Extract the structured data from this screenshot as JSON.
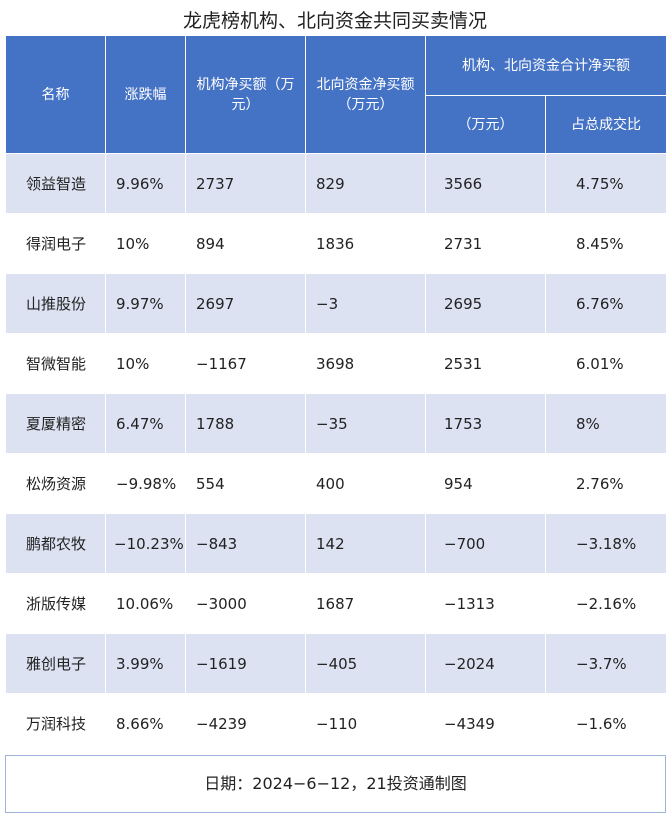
{
  "title": "龙虎榜机构、北向资金共同买卖情况",
  "headers": {
    "name": "名称",
    "change": "涨跌幅",
    "inst_net": "机构净买额（万元）",
    "north_net": "北向资金净买额（万元）",
    "combined_group": "机构、北向资金合计净买额",
    "combined_amount": "（万元）",
    "combined_share": "占总成交比"
  },
  "rows": [
    {
      "name": "领益智造",
      "change": "9.96%",
      "inst_net": "2737",
      "north_net": "829",
      "combined": "3566",
      "share": "4.75%"
    },
    {
      "name": "得润电子",
      "change": "10%",
      "inst_net": "894",
      "north_net": "1836",
      "combined": "2731",
      "share": "8.45%"
    },
    {
      "name": "山推股份",
      "change": "9.97%",
      "inst_net": "2697",
      "north_net": "−3",
      "combined": "2695",
      "share": "6.76%"
    },
    {
      "name": "智微智能",
      "change": "10%",
      "inst_net": "−1167",
      "north_net": "3698",
      "combined": "2531",
      "share": "6.01%"
    },
    {
      "name": "夏厦精密",
      "change": "6.47%",
      "inst_net": "1788",
      "north_net": "−35",
      "combined": "1753",
      "share": "8%"
    },
    {
      "name": "松炀资源",
      "change": "−9.98%",
      "inst_net": "554",
      "north_net": "400",
      "combined": "954",
      "share": "2.76%"
    },
    {
      "name": "鹏都农牧",
      "change": "−10.23%",
      "inst_net": "−843",
      "north_net": "142",
      "combined": "−700",
      "share": "−3.18%"
    },
    {
      "name": "浙版传媒",
      "change": "10.06%",
      "inst_net": "−3000",
      "north_net": "1687",
      "combined": "−1313",
      "share": "−2.16%"
    },
    {
      "name": "雅创电子",
      "change": "3.99%",
      "inst_net": "−1619",
      "north_net": "−405",
      "combined": "−2024",
      "share": "−3.7%"
    },
    {
      "name": "万润科技",
      "change": "8.66%",
      "inst_net": "−4239",
      "north_net": "−110",
      "combined": "−4349",
      "share": "−1.6%"
    }
  ],
  "footer": "日期：2024−6−12，21投资通制图",
  "colors": {
    "header_bg": "#4472c4",
    "stripe_bg": "#dde2f3",
    "footer_border": "#9fb3dd"
  }
}
